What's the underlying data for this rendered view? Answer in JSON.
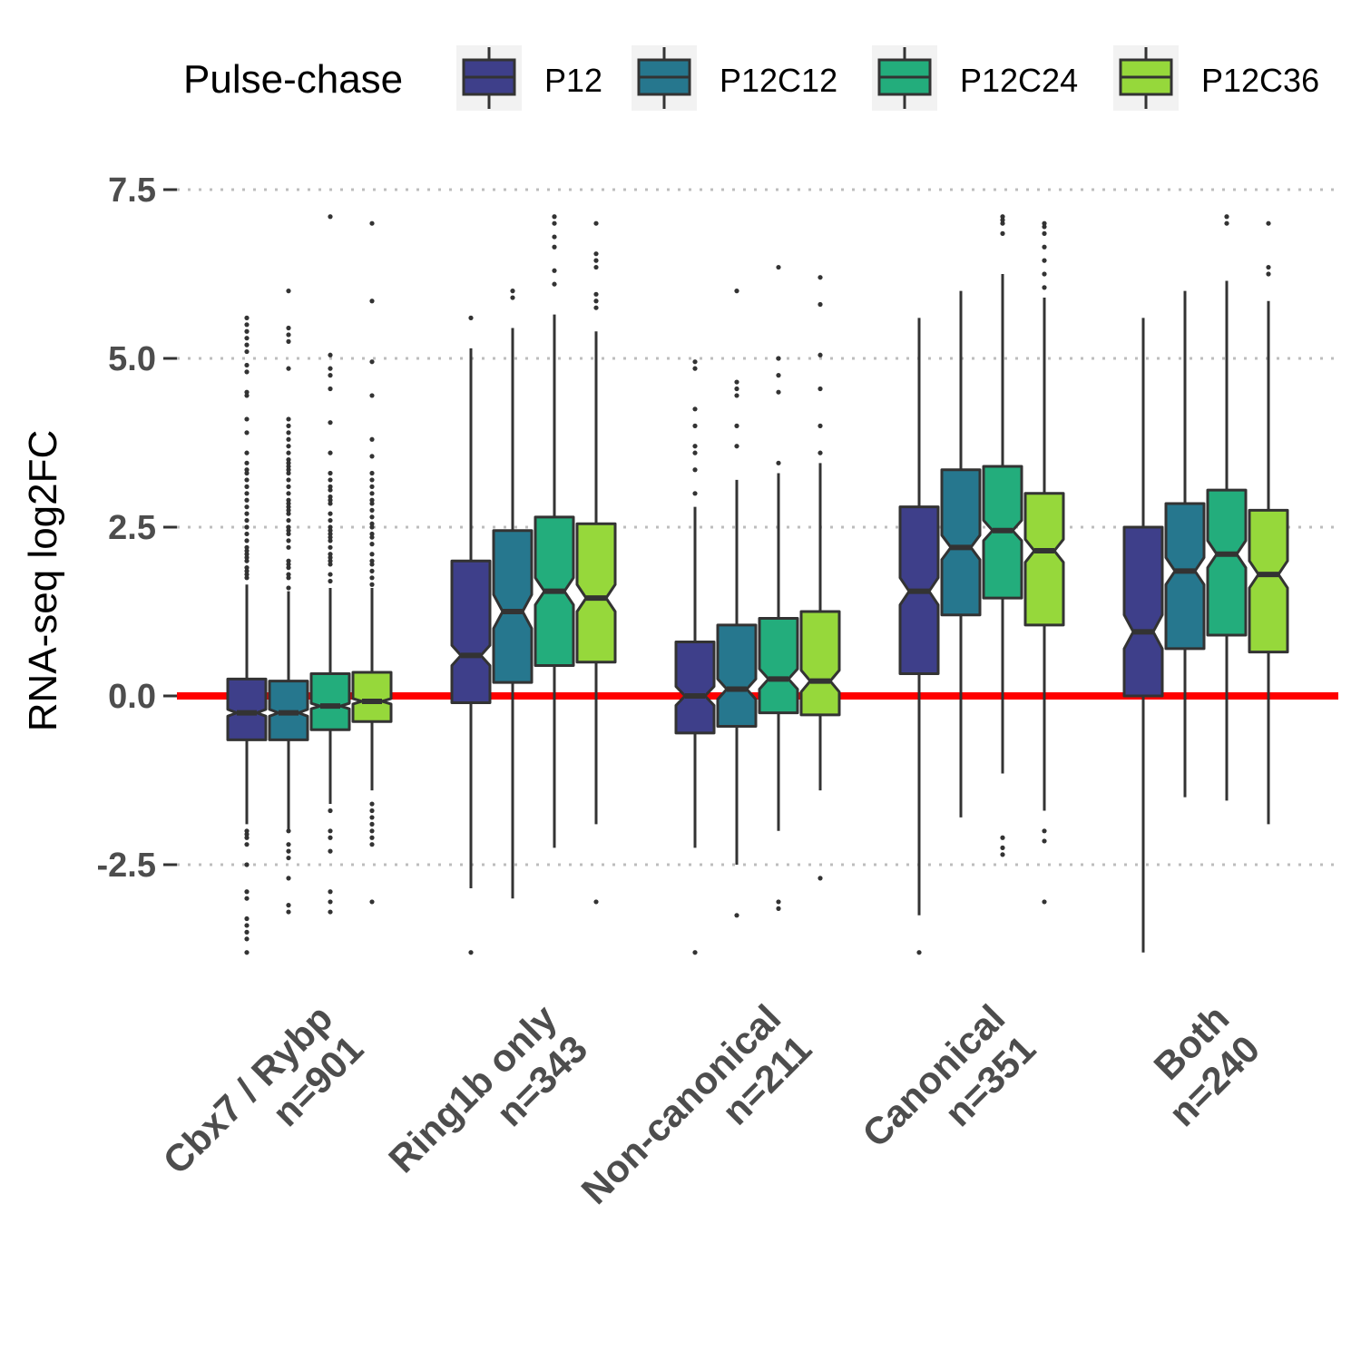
{
  "chart_data": {
    "type": "boxplot",
    "title": "",
    "xlabel": "",
    "ylabel": "RNA-seq log2FC",
    "ylim": [
      -3.8,
      7.5
    ],
    "yticks": [
      "7.5",
      "5.0",
      "2.5",
      "0.0",
      "-2.5"
    ],
    "ytick_values": [
      7.5,
      5.0,
      2.5,
      0.0,
      -2.5
    ],
    "grid": "horizontal dotted",
    "reference_line": {
      "y": 0,
      "color": "#ff0000"
    },
    "legend": {
      "title": "Pulse-chase",
      "position": "top",
      "entries": [
        "P12",
        "P12C12",
        "P12C24",
        "P12C36"
      ]
    },
    "categories": [
      {
        "name": "Cbx7 / Rybp",
        "n": "n=901"
      },
      {
        "name": "Ring1b only",
        "n": "n=343"
      },
      {
        "name": "Non-canonical",
        "n": "n=211"
      },
      {
        "name": "Canonical",
        "n": "n=351"
      },
      {
        "name": "Both",
        "n": "n=240"
      }
    ],
    "series": [
      {
        "name": "P12",
        "color": "#3e3f8a",
        "boxes": [
          {
            "q1": -0.65,
            "median": -0.25,
            "q3": 0.25,
            "lower": -1.9,
            "upper": 1.65,
            "notch": 0.05,
            "outliers": [
              5.6,
              5.5,
              5.4,
              5.3,
              5.2,
              5.1,
              4.9,
              4.8,
              4.5,
              4.45,
              4.1,
              3.9,
              3.6,
              3.45,
              3.35,
              3.3,
              3.2,
              3.1,
              3.0,
              2.9,
              2.8,
              2.7,
              2.6,
              2.5,
              2.4,
              2.3,
              2.2,
              2.15,
              2.1,
              2.05,
              2.0,
              1.9,
              1.85,
              1.8,
              1.75,
              -2.0,
              -2.05,
              -2.1,
              -2.2,
              -2.5,
              -2.9,
              -3.0,
              -3.3,
              -3.4,
              -3.5,
              -3.6,
              -3.8
            ]
          },
          {
            "q1": -0.1,
            "median": 0.6,
            "q3": 2.0,
            "lower": -2.85,
            "upper": 5.15,
            "notch": 0.15,
            "outliers": [
              5.6,
              -3.8
            ]
          },
          {
            "q1": -0.55,
            "median": 0.0,
            "q3": 0.8,
            "lower": -2.25,
            "upper": 2.8,
            "notch": 0.14,
            "outliers": [
              4.95,
              4.85,
              4.25,
              4.0,
              3.7,
              3.6,
              3.35,
              3.0,
              -3.8
            ]
          },
          {
            "q1": 0.33,
            "median": 1.55,
            "q3": 2.8,
            "lower": -3.25,
            "upper": 5.6,
            "notch": 0.2,
            "outliers": [
              -3.8
            ]
          },
          {
            "q1": 0.0,
            "median": 0.95,
            "q3": 2.5,
            "lower": -3.8,
            "upper": 5.6,
            "notch": 0.25,
            "outliers": []
          }
        ]
      },
      {
        "name": "P12C12",
        "color": "#26778e",
        "boxes": [
          {
            "q1": -0.65,
            "median": -0.25,
            "q3": 0.22,
            "lower": -2.0,
            "upper": 1.55,
            "notch": 0.05,
            "outliers": [
              6.0,
              5.45,
              5.35,
              5.25,
              4.85,
              4.1,
              4.0,
              3.9,
              3.8,
              3.7,
              3.6,
              3.5,
              3.45,
              3.4,
              3.35,
              3.3,
              3.2,
              3.1,
              3.0,
              2.9,
              2.85,
              2.8,
              2.75,
              2.7,
              2.6,
              2.5,
              2.45,
              2.4,
              2.3,
              2.2,
              2.0,
              1.95,
              1.9,
              1.8,
              1.75,
              1.6,
              -2.0,
              -2.2,
              -2.3,
              -2.4,
              -2.7,
              -3.1,
              -3.2
            ]
          },
          {
            "q1": 0.2,
            "median": 1.25,
            "q3": 2.45,
            "lower": -3.0,
            "upper": 5.45,
            "notch": 0.25,
            "outliers": [
              6.0,
              5.9
            ]
          },
          {
            "q1": -0.45,
            "median": 0.1,
            "q3": 1.05,
            "lower": -2.5,
            "upper": 3.2,
            "notch": 0.15,
            "outliers": [
              6.0,
              4.65,
              4.55,
              4.45,
              4.0,
              3.7,
              -3.25
            ]
          },
          {
            "q1": 1.2,
            "median": 2.2,
            "q3": 3.35,
            "lower": -1.8,
            "upper": 6.0,
            "notch": 0.18,
            "outliers": []
          },
          {
            "q1": 0.7,
            "median": 1.85,
            "q3": 2.85,
            "lower": -1.5,
            "upper": 6.0,
            "notch": 0.2,
            "outliers": []
          }
        ]
      },
      {
        "name": "P12C24",
        "color": "#23ad7c",
        "boxes": [
          {
            "q1": -0.5,
            "median": -0.15,
            "q3": 0.33,
            "lower": -1.6,
            "upper": 1.6,
            "notch": 0.04,
            "outliers": [
              7.1,
              5.05,
              4.85,
              4.75,
              4.55,
              4.05,
              3.6,
              3.3,
              3.2,
              3.1,
              3.05,
              2.95,
              2.9,
              2.85,
              2.7,
              2.6,
              2.5,
              2.45,
              2.4,
              2.35,
              2.3,
              2.2,
              2.1,
              2.05,
              2.0,
              1.95,
              1.8,
              1.7,
              -1.7,
              -2.0,
              -2.1,
              -2.3,
              -2.9,
              -3.05,
              -3.2
            ]
          },
          {
            "q1": 0.45,
            "median": 1.55,
            "q3": 2.65,
            "lower": -2.25,
            "upper": 5.65,
            "notch": 0.2,
            "outliers": [
              7.1,
              7.0,
              6.8,
              6.65,
              6.3,
              6.1
            ]
          },
          {
            "q1": -0.25,
            "median": 0.25,
            "q3": 1.15,
            "lower": -2.0,
            "upper": 3.3,
            "notch": 0.15,
            "outliers": [
              6.35,
              5.0,
              4.75,
              4.5,
              3.45,
              -3.05,
              -3.15
            ]
          },
          {
            "q1": 1.45,
            "median": 2.45,
            "q3": 3.4,
            "lower": -1.15,
            "upper": 6.25,
            "notch": 0.15,
            "outliers": [
              7.1,
              7.05,
              7.0,
              6.85,
              -2.1,
              -2.25,
              -2.35
            ]
          },
          {
            "q1": 0.9,
            "median": 2.1,
            "q3": 3.05,
            "lower": -1.55,
            "upper": 6.15,
            "notch": 0.2,
            "outliers": [
              7.1,
              7.0
            ]
          }
        ]
      },
      {
        "name": "P12C36",
        "color": "#96d83b",
        "boxes": [
          {
            "q1": -0.38,
            "median": -0.08,
            "q3": 0.35,
            "lower": -1.4,
            "upper": 1.6,
            "notch": 0.04,
            "outliers": [
              7.0,
              5.85,
              4.95,
              4.45,
              3.8,
              3.55,
              3.3,
              3.2,
              3.1,
              3.0,
              2.9,
              2.85,
              2.75,
              2.65,
              2.55,
              2.5,
              2.4,
              2.35,
              2.25,
              2.1,
              2.0,
              1.95,
              1.85,
              1.75,
              1.65,
              -1.6,
              -1.7,
              -1.8,
              -1.9,
              -2.0,
              -2.1,
              -2.2,
              -3.05
            ]
          },
          {
            "q1": 0.5,
            "median": 1.45,
            "q3": 2.55,
            "lower": -1.9,
            "upper": 5.4,
            "notch": 0.2,
            "outliers": [
              7.0,
              6.55,
              6.45,
              6.35,
              5.95,
              5.85,
              5.75,
              -3.05
            ]
          },
          {
            "q1": -0.28,
            "median": 0.22,
            "q3": 1.25,
            "lower": -1.4,
            "upper": 3.45,
            "notch": 0.16,
            "outliers": [
              6.2,
              5.8,
              5.05,
              4.55,
              4.0,
              3.6,
              -2.7
            ]
          },
          {
            "q1": 1.05,
            "median": 2.15,
            "q3": 3.0,
            "lower": -1.7,
            "upper": 5.9,
            "notch": 0.17,
            "outliers": [
              7.0,
              6.95,
              6.85,
              6.65,
              6.45,
              6.25,
              6.05,
              -2.0,
              -2.15,
              -3.05
            ]
          },
          {
            "q1": 0.65,
            "median": 1.8,
            "q3": 2.75,
            "lower": -1.9,
            "upper": 5.85,
            "notch": 0.2,
            "outliers": [
              7.0,
              6.35,
              6.25
            ]
          }
        ]
      }
    ]
  }
}
